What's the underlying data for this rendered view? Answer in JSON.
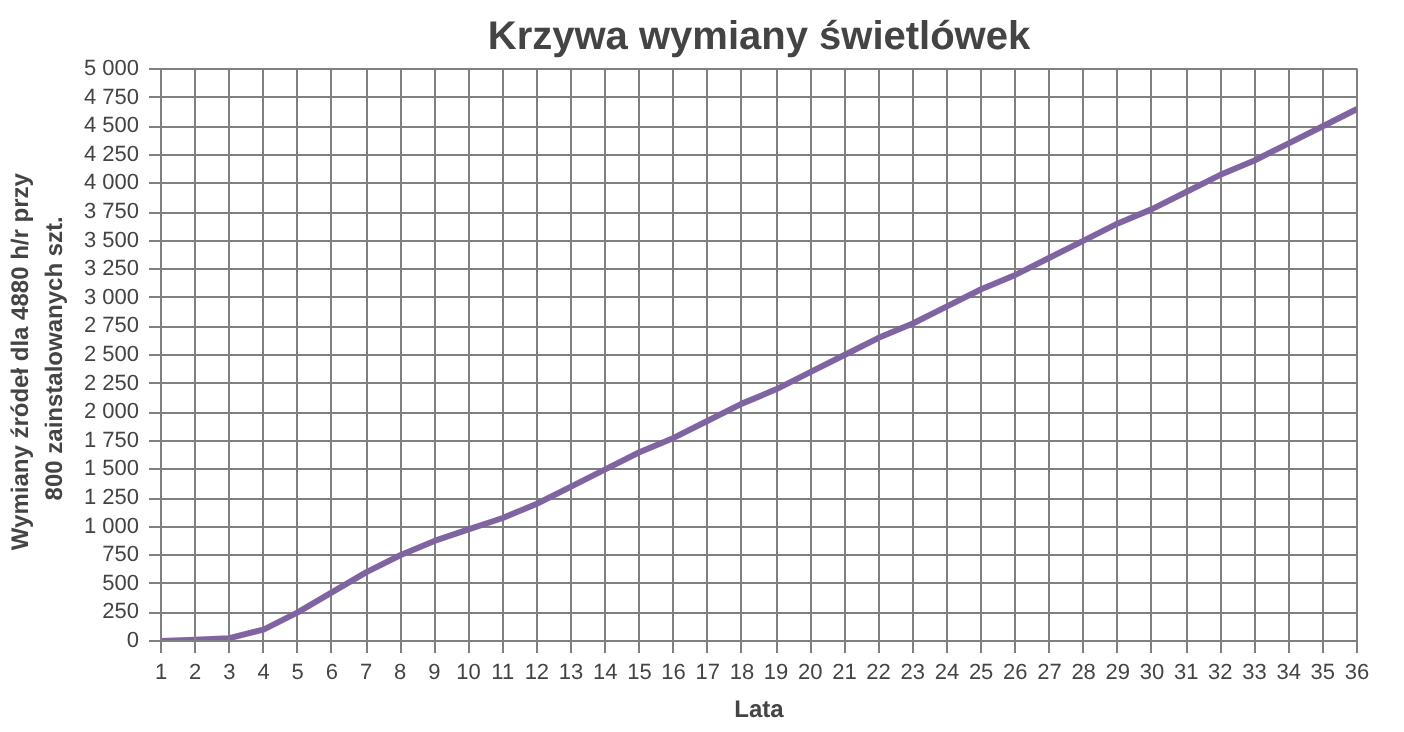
{
  "chart_data": {
    "type": "line",
    "title": "Krzywa wymiany świetlówek",
    "xlabel": "Lata",
    "ylabel": "Wymiany źródeł dla  4880  h/r przy\n800  zainstalowanych szt.",
    "x": [
      1,
      2,
      3,
      4,
      5,
      6,
      7,
      8,
      9,
      10,
      11,
      12,
      13,
      14,
      15,
      16,
      17,
      18,
      19,
      20,
      21,
      22,
      23,
      24,
      25,
      26,
      27,
      28,
      29,
      30,
      31,
      32,
      33,
      34,
      35,
      36
    ],
    "series": [
      {
        "color": "#8064a2",
        "values": [
          0,
          10,
          25,
          100,
          250,
          425,
          600,
          750,
          875,
          975,
          1075,
          1200,
          1350,
          1500,
          1650,
          1775,
          1925,
          2075,
          2200,
          2350,
          2500,
          2650,
          2775,
          2925,
          3075,
          3200,
          3350,
          3500,
          3650,
          3775,
          3925,
          4075,
          4200,
          4350,
          4500,
          4650
        ]
      }
    ],
    "xlim": [
      1,
      36
    ],
    "xticks": [
      1,
      2,
      3,
      4,
      5,
      6,
      7,
      8,
      9,
      10,
      11,
      12,
      13,
      14,
      15,
      16,
      17,
      18,
      19,
      20,
      21,
      22,
      23,
      24,
      25,
      26,
      27,
      28,
      29,
      30,
      31,
      32,
      33,
      34,
      35,
      36
    ],
    "ylim": [
      0,
      5000
    ],
    "yticks": [
      {
        "value": 0,
        "label": "0"
      },
      {
        "value": 250,
        "label": "250"
      },
      {
        "value": 500,
        "label": "500"
      },
      {
        "value": 750,
        "label": "750"
      },
      {
        "value": 1000,
        "label": "1 000"
      },
      {
        "value": 1250,
        "label": "1 250"
      },
      {
        "value": 1500,
        "label": "1 500"
      },
      {
        "value": 1750,
        "label": "1 750"
      },
      {
        "value": 2000,
        "label": "2 000"
      },
      {
        "value": 2250,
        "label": "2 250"
      },
      {
        "value": 2500,
        "label": "2 500"
      },
      {
        "value": 2750,
        "label": "2 750"
      },
      {
        "value": 3000,
        "label": "3 000"
      },
      {
        "value": 3250,
        "label": "3 250"
      },
      {
        "value": 3500,
        "label": "3 500"
      },
      {
        "value": 3750,
        "label": "3 750"
      },
      {
        "value": 4000,
        "label": "4 000"
      },
      {
        "value": 4250,
        "label": "4 250"
      },
      {
        "value": 4500,
        "label": "4 500"
      },
      {
        "value": 4750,
        "label": "4 750"
      },
      {
        "value": 5000,
        "label": "5 000"
      }
    ],
    "grid": true,
    "marker": "none",
    "line_style": "solid"
  }
}
